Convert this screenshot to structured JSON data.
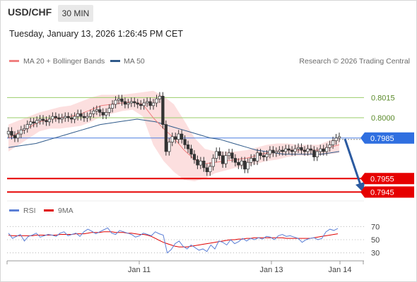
{
  "header": {
    "symbol": "USD/CHF",
    "timeframe": "30 MIN",
    "timestamp": "Tuesday, January 13, 2026 1:26:45 PM CET"
  },
  "legend": {
    "ma20_label": "MA 20 + Bollinger Bands",
    "ma20_color": "#f08080",
    "ma50_label": "MA 50",
    "ma50_color": "#2f5a8a",
    "credit": "Research © 2026 Trading Central"
  },
  "rsi_legend": {
    "rsi_label": "RSI",
    "rsi_color": "#5b7fd6",
    "ma_label": "9MA",
    "ma_color": "#e00000"
  },
  "colors": {
    "up_candle": "#ffffff",
    "down_candle": "#333333",
    "resistance": "#9acd6a",
    "support": "#e60000",
    "pivot": "#4a7de0",
    "band_fill": "#fbd4d4",
    "arrow": "#2b5aa0"
  },
  "chart_data": {
    "type": "candlestick",
    "symbol": "USD/CHF",
    "timeframe": "30 MIN",
    "x_ticks": [
      "Jan 11",
      "Jan 13",
      "Jan 14"
    ],
    "ylim": [
      0.794,
      0.8035
    ],
    "levels": [
      {
        "value": 0.8015,
        "label": "0.8015",
        "kind": "resistance"
      },
      {
        "value": 0.8,
        "label": "0.8000",
        "kind": "resistance"
      },
      {
        "value": 0.7985,
        "label": "0.7985",
        "kind": "pivot"
      },
      {
        "value": 0.7955,
        "label": "0.7955",
        "kind": "support"
      },
      {
        "value": 0.7945,
        "label": "0.7945",
        "kind": "support"
      }
    ],
    "close": [
      0.799,
      0.7987,
      0.7985,
      0.7988,
      0.7991,
      0.7992,
      0.7995,
      0.7997,
      0.7996,
      0.7998,
      0.7999,
      0.7998,
      0.7997,
      0.7999,
      0.8001,
      0.8,
      0.7999,
      0.8,
      0.8001,
      0.8,
      0.7999,
      0.8001,
      0.8003,
      0.8001,
      0.8,
      0.8001,
      0.8003,
      0.8005,
      0.8006,
      0.8004,
      0.8002,
      0.8004,
      0.8007,
      0.801,
      0.8013,
      0.8014,
      0.8012,
      0.801,
      0.8011,
      0.8012,
      0.8011,
      0.801,
      0.8009,
      0.8011,
      0.8012,
      0.8009,
      0.8011,
      0.8014,
      0.8016,
      0.7995,
      0.7975,
      0.7982,
      0.7986,
      0.7984,
      0.7988,
      0.7984,
      0.798,
      0.7977,
      0.7973,
      0.7969,
      0.7965,
      0.7968,
      0.7963,
      0.796,
      0.7964,
      0.797,
      0.7975,
      0.7972,
      0.7966,
      0.7972,
      0.7974,
      0.797,
      0.7967,
      0.7965,
      0.7968,
      0.7962,
      0.7967,
      0.797,
      0.7968,
      0.7974,
      0.7972,
      0.7971,
      0.7973,
      0.7976,
      0.7974,
      0.7975,
      0.7976,
      0.7975,
      0.7977,
      0.7976,
      0.7975,
      0.7977,
      0.7978,
      0.7976,
      0.7975,
      0.7977,
      0.7976,
      0.7971,
      0.7975,
      0.7977,
      0.7975,
      0.7978,
      0.798,
      0.7983,
      0.7985,
      0.7986
    ],
    "ma50": [
      0.7978,
      0.7979,
      0.798,
      0.7981,
      0.7983,
      0.7985,
      0.7987,
      0.7989,
      0.7991,
      0.7993,
      0.7995,
      0.7996,
      0.7997,
      0.7998,
      0.7999,
      0.7998,
      0.7997,
      0.7995,
      0.7993,
      0.7991,
      0.7989,
      0.7987,
      0.7985,
      0.7984,
      0.7982,
      0.798,
      0.7978,
      0.7976,
      0.7975,
      0.7974,
      0.7973,
      0.7973,
      0.7973,
      0.7973,
      0.7973,
      0.7974,
      0.7975
    ],
    "ma20": [
      0.7985,
      0.7989,
      0.7993,
      0.7997,
      0.7999,
      0.8,
      0.8001,
      0.8003,
      0.8006,
      0.8009,
      0.801,
      0.8011,
      0.8012,
      0.801,
      0.8,
      0.7992,
      0.7985,
      0.7976,
      0.7969,
      0.7966,
      0.7967,
      0.7968,
      0.7969,
      0.797,
      0.7972,
      0.7974,
      0.7975,
      0.7976,
      0.7976,
      0.7976,
      0.7976,
      0.7978,
      0.798
    ],
    "band_width": [
      0.001,
      0.0009,
      0.0008,
      0.0007,
      0.0007,
      0.0008,
      0.0008,
      0.0009,
      0.0009,
      0.0008,
      0.0007,
      0.0006,
      0.0006,
      0.0009,
      0.002,
      0.0024,
      0.0025,
      0.0022,
      0.0016,
      0.0011,
      0.0008,
      0.0007,
      0.0006,
      0.0006,
      0.0006,
      0.0006,
      0.0006,
      0.0005,
      0.0004,
      0.0004,
      0.0004,
      0.0005,
      0.0006
    ],
    "rsi": {
      "yticks": [
        70,
        50,
        30
      ],
      "ylim": [
        20,
        80
      ],
      "rsi": [
        60,
        52,
        55,
        58,
        48,
        55,
        57,
        60,
        54,
        56,
        58,
        57,
        55,
        60,
        62,
        56,
        58,
        60,
        55,
        62,
        66,
        63,
        59,
        62,
        65,
        68,
        60,
        58,
        64,
        62,
        60,
        58,
        54,
        56,
        60,
        58,
        56,
        62,
        59,
        57,
        30,
        35,
        44,
        48,
        40,
        36,
        42,
        38,
        34,
        36,
        32,
        42,
        36,
        48,
        46,
        42,
        50,
        44,
        47,
        52,
        48,
        52,
        50,
        53,
        51,
        55,
        54,
        50,
        56,
        58,
        55,
        56,
        54,
        52,
        46,
        50,
        52,
        53,
        50,
        52,
        62,
        66,
        64,
        67
      ],
      "ma9": [
        57,
        56,
        56,
        56,
        56,
        56,
        56,
        57,
        57,
        57,
        57,
        57,
        57,
        58,
        58,
        58,
        58,
        59,
        59,
        59,
        60,
        61,
        61,
        61,
        62,
        62,
        62,
        61,
        61,
        61,
        60,
        60,
        59,
        58,
        58,
        57,
        55,
        52,
        49,
        46,
        44,
        42,
        40,
        39,
        39,
        39,
        40,
        41,
        42,
        43,
        44,
        45,
        46,
        47,
        48,
        49,
        50,
        50,
        51,
        51,
        52,
        52,
        53,
        53,
        53,
        53,
        53,
        53,
        53,
        53,
        52,
        52,
        52,
        52,
        52,
        52,
        52,
        53,
        54,
        55,
        56,
        57,
        58,
        59
      ]
    }
  }
}
